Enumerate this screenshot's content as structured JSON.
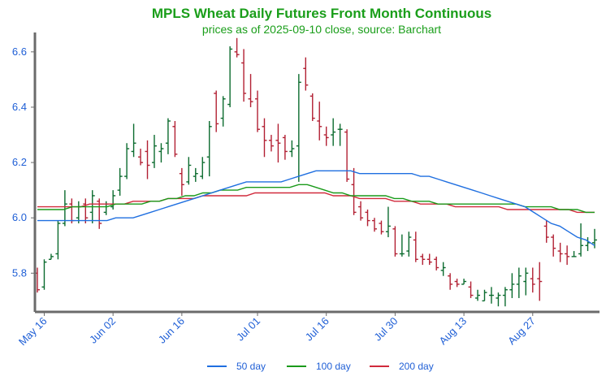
{
  "chart_data": {
    "type": "ohlc",
    "title": "MPLS Wheat Daily Futures Front Month Continuous",
    "subtitle": "prices as of 2025-09-10 close, source: Barchart",
    "xlabel": "",
    "ylabel": "",
    "ylim": [
      5.66,
      6.67
    ],
    "yticks": [
      "5.8",
      "6.0",
      "6.2",
      "6.4",
      "6.6"
    ],
    "xticks": [
      "May 16",
      "Jun 02",
      "Jun 16",
      "Jul 01",
      "Jul 16",
      "Jul 30",
      "Aug 13",
      "Aug 27"
    ],
    "legend": {
      "placement": "bottom",
      "entries": [
        "50 day",
        "100 day",
        "200 day"
      ]
    },
    "colors": {
      "up": "#0b6b2e",
      "down": "#b22033",
      "ma50": "#1f6fe0",
      "ma100": "#1a9a1a",
      "ma200": "#d12a3c",
      "text": "#1f5fd6",
      "title": "#1a9e1a"
    },
    "candles": [
      {
        "date": "May 15",
        "open": 5.8,
        "high": 5.82,
        "low": 5.73,
        "close": 5.74
      },
      {
        "date": "May 16",
        "open": 5.75,
        "high": 5.85,
        "low": 5.74,
        "close": 5.84
      },
      {
        "date": "May 19",
        "open": 5.85,
        "high": 5.87,
        "low": 5.85,
        "close": 5.86
      },
      {
        "date": "May 20",
        "open": 5.87,
        "high": 5.99,
        "low": 5.85,
        "close": 5.98
      },
      {
        "date": "May 21",
        "open": 5.98,
        "high": 6.1,
        "low": 5.97,
        "close": 6.05
      },
      {
        "date": "May 22",
        "open": 6.05,
        "high": 6.07,
        "low": 5.98,
        "close": 5.99
      },
      {
        "date": "May 23",
        "open": 6.0,
        "high": 6.06,
        "low": 5.98,
        "close": 6.04
      },
      {
        "date": "May 27",
        "open": 6.05,
        "high": 6.07,
        "low": 5.98,
        "close": 6.0
      },
      {
        "date": "May 28",
        "open": 6.02,
        "high": 6.1,
        "low": 5.98,
        "close": 6.08
      },
      {
        "date": "May 29",
        "open": 6.06,
        "high": 6.07,
        "low": 5.96,
        "close": 5.98
      },
      {
        "date": "May 30",
        "open": 6.02,
        "high": 6.06,
        "low": 6.01,
        "close": 6.05
      },
      {
        "date": "Jun 02",
        "open": 6.04,
        "high": 6.1,
        "low": 6.03,
        "close": 6.08
      },
      {
        "date": "Jun 03",
        "open": 6.1,
        "high": 6.18,
        "low": 6.08,
        "close": 6.15
      },
      {
        "date": "Jun 04",
        "open": 6.15,
        "high": 6.27,
        "low": 6.14,
        "close": 6.25
      },
      {
        "date": "Jun 05",
        "open": 6.24,
        "high": 6.34,
        "low": 6.22,
        "close": 6.27
      },
      {
        "date": "Jun 06",
        "open": 6.22,
        "high": 6.25,
        "low": 6.19,
        "close": 6.2
      },
      {
        "date": "Jun 09",
        "open": 6.24,
        "high": 6.28,
        "low": 6.14,
        "close": 6.19
      },
      {
        "date": "Jun 10",
        "open": 6.2,
        "high": 6.3,
        "low": 6.18,
        "close": 6.26
      },
      {
        "date": "Jun 11",
        "open": 6.24,
        "high": 6.27,
        "low": 6.2,
        "close": 6.25
      },
      {
        "date": "Jun 12",
        "open": 6.27,
        "high": 6.36,
        "low": 6.23,
        "close": 6.35
      },
      {
        "date": "Jun 13",
        "open": 6.33,
        "high": 6.35,
        "low": 6.22,
        "close": 6.23
      },
      {
        "date": "Jun 16",
        "open": 6.16,
        "high": 6.18,
        "low": 6.08,
        "close": 6.12
      },
      {
        "date": "Jun 17",
        "open": 6.13,
        "high": 6.22,
        "low": 6.12,
        "close": 6.19
      },
      {
        "date": "Jun 18",
        "open": 6.15,
        "high": 6.18,
        "low": 6.13,
        "close": 6.16
      },
      {
        "date": "Jun 19",
        "open": 6.15,
        "high": 6.22,
        "low": 6.14,
        "close": 6.2
      },
      {
        "date": "Jun 20",
        "open": 6.22,
        "high": 6.35,
        "low": 6.15,
        "close": 6.33
      },
      {
        "date": "Jun 23",
        "open": 6.45,
        "high": 6.46,
        "low": 6.31,
        "close": 6.34
      },
      {
        "date": "Jun 24",
        "open": 6.36,
        "high": 6.44,
        "low": 6.33,
        "close": 6.43
      },
      {
        "date": "Jun 25",
        "open": 6.41,
        "high": 6.62,
        "low": 6.4,
        "close": 6.61
      },
      {
        "date": "Jun 26",
        "open": 6.6,
        "high": 6.65,
        "low": 6.58,
        "close": 6.59
      },
      {
        "date": "Jun 27",
        "open": 6.56,
        "high": 6.61,
        "low": 6.42,
        "close": 6.45
      },
      {
        "date": "Jun 30",
        "open": 6.43,
        "high": 6.52,
        "low": 6.4,
        "close": 6.42
      },
      {
        "date": "Jul 01",
        "open": 6.43,
        "high": 6.46,
        "low": 6.31,
        "close": 6.32
      },
      {
        "date": "Jul 02",
        "open": 6.33,
        "high": 6.36,
        "low": 6.22,
        "close": 6.28
      },
      {
        "date": "Jul 03",
        "open": 6.28,
        "high": 6.3,
        "low": 6.24,
        "close": 6.26
      },
      {
        "date": "Jul 07",
        "open": 6.28,
        "high": 6.34,
        "low": 6.2,
        "close": 6.27
      },
      {
        "date": "Jul 08",
        "open": 6.29,
        "high": 6.3,
        "low": 6.21,
        "close": 6.24
      },
      {
        "date": "Jul 09",
        "open": 6.24,
        "high": 6.28,
        "low": 6.22,
        "close": 6.25
      },
      {
        "date": "Jul 10",
        "open": 6.26,
        "high": 6.52,
        "low": 6.13,
        "close": 6.49
      },
      {
        "date": "Jul 11",
        "open": 6.54,
        "high": 6.58,
        "low": 6.46,
        "close": 6.48
      },
      {
        "date": "Jul 14",
        "open": 6.44,
        "high": 6.45,
        "low": 6.35,
        "close": 6.36
      },
      {
        "date": "Jul 15",
        "open": 6.35,
        "high": 6.42,
        "low": 6.28,
        "close": 6.33
      },
      {
        "date": "Jul 16",
        "open": 6.3,
        "high": 6.33,
        "low": 6.26,
        "close": 6.29
      },
      {
        "date": "Jul 17",
        "open": 6.3,
        "high": 6.36,
        "low": 6.26,
        "close": 6.31
      },
      {
        "date": "Jul 18",
        "open": 6.32,
        "high": 6.34,
        "low": 6.26,
        "close": 6.32
      },
      {
        "date": "Jul 21",
        "open": 6.31,
        "high": 6.32,
        "low": 6.13,
        "close": 6.14
      },
      {
        "date": "Jul 22",
        "open": 6.12,
        "high": 6.18,
        "low": 6.01,
        "close": 6.02
      },
      {
        "date": "Jul 23",
        "open": 6.04,
        "high": 6.06,
        "low": 5.99,
        "close": 6.0
      },
      {
        "date": "Jul 24",
        "open": 6.02,
        "high": 6.03,
        "low": 5.97,
        "close": 5.99
      },
      {
        "date": "Jul 25",
        "open": 5.99,
        "high": 6.0,
        "low": 5.95,
        "close": 5.96
      },
      {
        "date": "Jul 28",
        "open": 5.98,
        "high": 5.99,
        "low": 5.94,
        "close": 5.95
      },
      {
        "date": "Jul 29",
        "open": 5.95,
        "high": 6.04,
        "low": 5.93,
        "close": 5.97
      },
      {
        "date": "Jul 30",
        "open": 5.96,
        "high": 5.97,
        "low": 5.86,
        "close": 5.87
      },
      {
        "date": "Jul 31",
        "open": 5.87,
        "high": 5.94,
        "low": 5.86,
        "close": 5.87
      },
      {
        "date": "Aug 01",
        "open": 5.88,
        "high": 5.95,
        "low": 5.86,
        "close": 5.93
      },
      {
        "date": "Aug 04",
        "open": 5.92,
        "high": 5.95,
        "low": 5.84,
        "close": 5.85
      },
      {
        "date": "Aug 05",
        "open": 5.86,
        "high": 5.87,
        "low": 5.83,
        "close": 5.85
      },
      {
        "date": "Aug 06",
        "open": 5.85,
        "high": 5.87,
        "low": 5.83,
        "close": 5.84
      },
      {
        "date": "Aug 07",
        "open": 5.85,
        "high": 5.86,
        "low": 5.81,
        "close": 5.82
      },
      {
        "date": "Aug 08",
        "open": 5.81,
        "high": 5.84,
        "low": 5.79,
        "close": 5.82
      },
      {
        "date": "Aug 11",
        "open": 5.79,
        "high": 5.8,
        "low": 5.74,
        "close": 5.76
      },
      {
        "date": "Aug 12",
        "open": 5.77,
        "high": 5.78,
        "low": 5.75,
        "close": 5.76
      },
      {
        "date": "Aug 13",
        "open": 5.76,
        "high": 5.78,
        "low": 5.76,
        "close": 5.77
      },
      {
        "date": "Aug 14",
        "open": 5.75,
        "high": 5.77,
        "low": 5.71,
        "close": 5.72
      },
      {
        "date": "Aug 15",
        "open": 5.71,
        "high": 5.74,
        "low": 5.7,
        "close": 5.72
      },
      {
        "date": "Aug 18",
        "open": 5.7,
        "high": 5.74,
        "low": 5.7,
        "close": 5.73
      },
      {
        "date": "Aug 19",
        "open": 5.72,
        "high": 5.75,
        "low": 5.69,
        "close": 5.72
      },
      {
        "date": "Aug 20",
        "open": 5.71,
        "high": 5.73,
        "low": 5.68,
        "close": 5.72
      },
      {
        "date": "Aug 21",
        "open": 5.72,
        "high": 5.75,
        "low": 5.68,
        "close": 5.74
      },
      {
        "date": "Aug 22",
        "open": 5.74,
        "high": 5.8,
        "low": 5.71,
        "close": 5.76
      },
      {
        "date": "Aug 25",
        "open": 5.76,
        "high": 5.82,
        "low": 5.71,
        "close": 5.79
      },
      {
        "date": "Aug 26",
        "open": 5.77,
        "high": 5.82,
        "low": 5.72,
        "close": 5.8
      },
      {
        "date": "Aug 27",
        "open": 5.78,
        "high": 5.82,
        "low": 5.73,
        "close": 5.76
      },
      {
        "date": "Aug 28",
        "open": 5.78,
        "high": 5.84,
        "low": 5.7,
        "close": 5.77
      },
      {
        "date": "Aug 29",
        "open": 5.97,
        "high": 5.99,
        "low": 5.91,
        "close": 5.93
      },
      {
        "date": "Sep 02",
        "open": 5.93,
        "high": 5.94,
        "low": 5.86,
        "close": 5.89
      },
      {
        "date": "Sep 03",
        "open": 5.88,
        "high": 5.91,
        "low": 5.84,
        "close": 5.87
      },
      {
        "date": "Sep 04",
        "open": 5.87,
        "high": 5.9,
        "low": 5.83,
        "close": 5.86
      },
      {
        "date": "Sep 05",
        "open": 5.86,
        "high": 5.88,
        "low": 5.86,
        "close": 5.86
      },
      {
        "date": "Sep 08",
        "open": 5.87,
        "high": 5.98,
        "low": 5.86,
        "close": 5.9
      },
      {
        "date": "Sep 09",
        "open": 5.9,
        "high": 5.93,
        "low": 5.88,
        "close": 5.91
      },
      {
        "date": "Sep 10",
        "open": 5.91,
        "high": 5.96,
        "low": 5.89,
        "close": 5.92
      }
    ],
    "ma50": [
      5.99,
      5.99,
      5.99,
      5.99,
      5.99,
      5.99,
      5.99,
      5.99,
      5.99,
      6.0,
      6.0,
      6.0,
      6.01,
      6.02,
      6.03,
      6.04,
      6.05,
      6.06,
      6.07,
      6.08,
      6.09,
      6.1,
      6.11,
      6.12,
      6.13,
      6.13,
      6.13,
      6.13,
      6.13,
      6.14,
      6.15,
      6.16,
      6.17,
      6.17,
      6.17,
      6.17,
      6.17,
      6.16,
      6.16,
      6.16,
      6.16,
      6.16,
      6.16,
      6.16,
      6.15,
      6.15,
      6.14,
      6.13,
      6.12,
      6.11,
      6.1,
      6.09,
      6.08,
      6.07,
      6.06,
      6.05,
      6.04,
      6.02,
      6.0,
      5.98,
      5.97,
      5.95,
      5.93,
      5.92,
      5.9
    ],
    "ma100": [
      6.03,
      6.03,
      6.03,
      6.03,
      6.04,
      6.04,
      6.04,
      6.04,
      6.04,
      6.05,
      6.05,
      6.05,
      6.05,
      6.06,
      6.06,
      6.07,
      6.07,
      6.08,
      6.08,
      6.09,
      6.09,
      6.1,
      6.1,
      6.1,
      6.11,
      6.11,
      6.11,
      6.11,
      6.11,
      6.11,
      6.12,
      6.12,
      6.11,
      6.1,
      6.09,
      6.09,
      6.08,
      6.08,
      6.08,
      6.08,
      6.08,
      6.07,
      6.07,
      6.06,
      6.06,
      6.06,
      6.05,
      6.05,
      6.05,
      6.05,
      6.05,
      6.05,
      6.05,
      6.05,
      6.05,
      6.05,
      6.04,
      6.04,
      6.04,
      6.04,
      6.03,
      6.03,
      6.03,
      6.02,
      6.02
    ],
    "ma200": [
      6.04,
      6.04,
      6.04,
      6.04,
      6.04,
      6.04,
      6.05,
      6.05,
      6.05,
      6.05,
      6.05,
      6.06,
      6.06,
      6.06,
      6.06,
      6.07,
      6.07,
      6.07,
      6.07,
      6.08,
      6.08,
      6.08,
      6.08,
      6.08,
      6.08,
      6.09,
      6.09,
      6.09,
      6.09,
      6.09,
      6.09,
      6.09,
      6.09,
      6.09,
      6.08,
      6.08,
      6.08,
      6.07,
      6.07,
      6.07,
      6.07,
      6.06,
      6.06,
      6.06,
      6.05,
      6.05,
      6.05,
      6.05,
      6.04,
      6.04,
      6.04,
      6.04,
      6.04,
      6.04,
      6.03,
      6.03,
      6.03,
      6.03,
      6.03,
      6.03,
      6.03,
      6.03,
      6.02,
      6.02,
      6.02
    ]
  }
}
